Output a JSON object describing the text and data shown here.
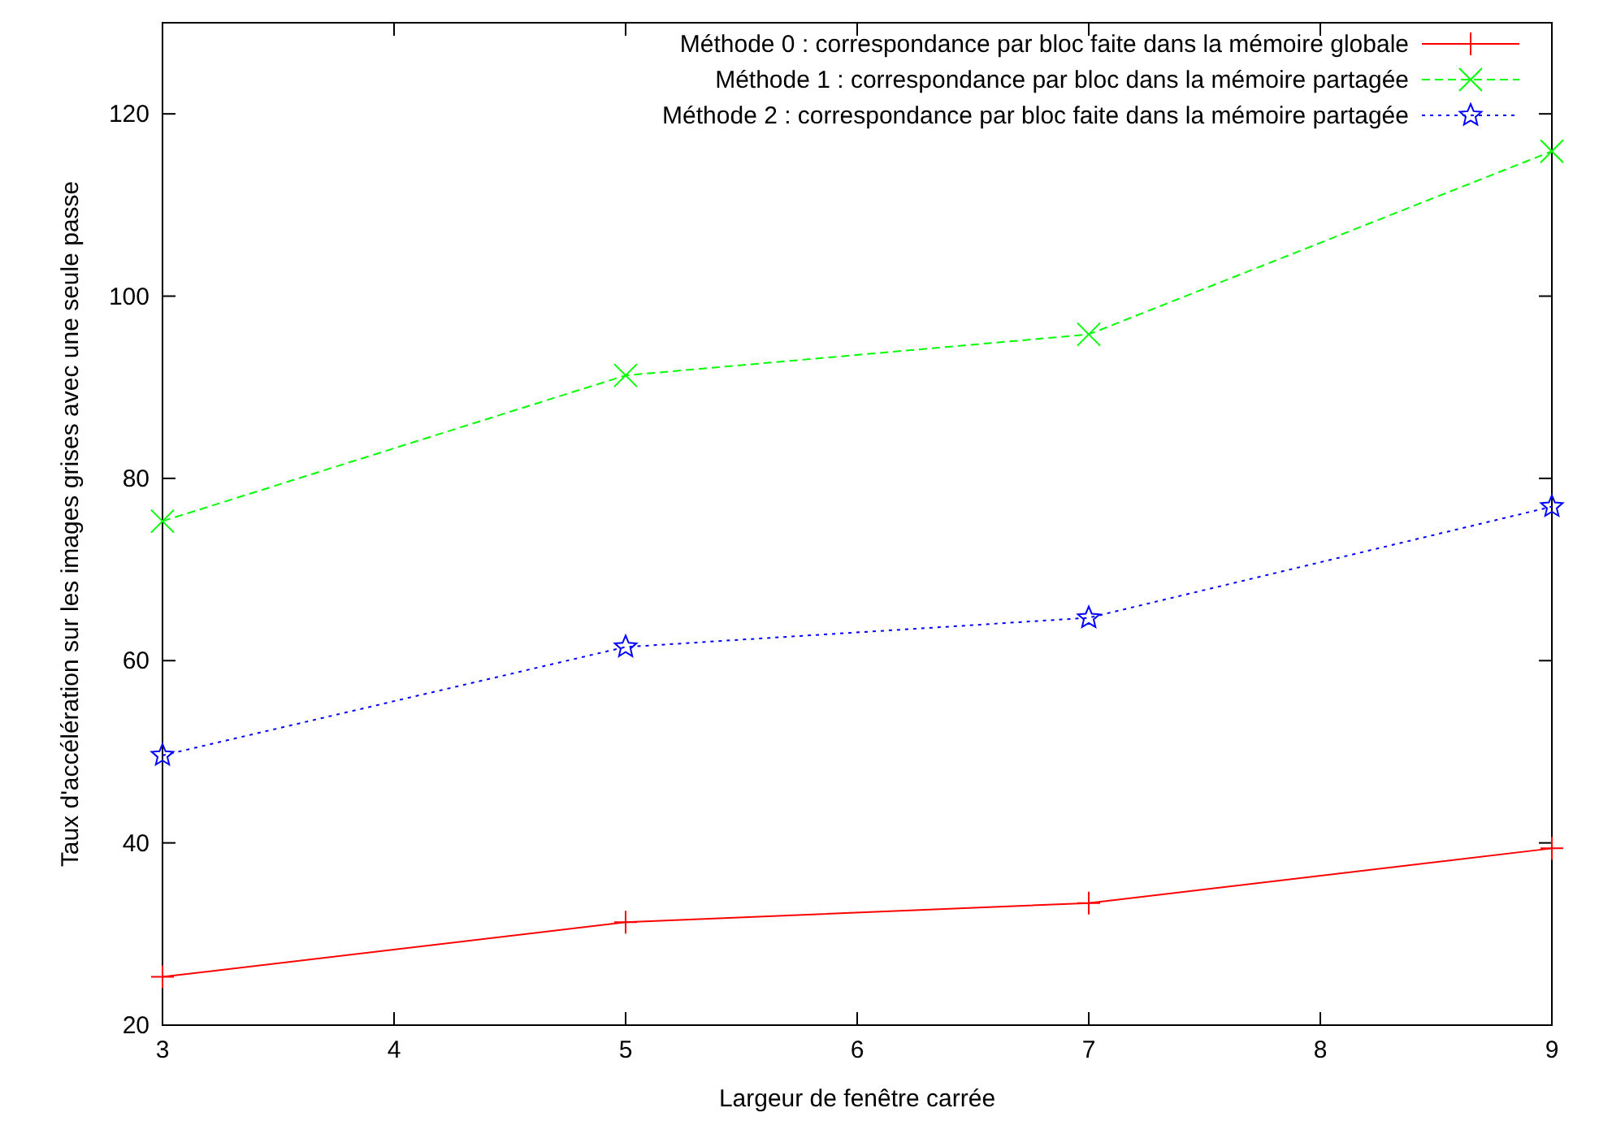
{
  "chart_data": {
    "type": "line",
    "xlabel": "Largeur de fenêtre carrée",
    "ylabel": "Taux d'accélération sur les images grises avec une seule passe",
    "x": [
      3,
      5,
      7,
      9
    ],
    "xlim": [
      3,
      9
    ],
    "xticks": [
      3,
      4,
      5,
      6,
      7,
      8,
      9
    ],
    "ylim": [
      20,
      130
    ],
    "yticks": [
      20,
      40,
      60,
      80,
      100,
      120
    ],
    "legend": "top right",
    "grid": false,
    "series": [
      {
        "name": "Méthode 0 : correspondance par bloc faite dans la mémoire globale",
        "color": "#ff0000",
        "values": [
          25.3,
          31.3,
          33.4,
          39.4
        ],
        "marker": "plus",
        "line_style": "solid"
      },
      {
        "name": "Méthode 1 : correspondance par bloc dans la mémoire partagée",
        "color": "#00ff00",
        "values": [
          75.3,
          91.3,
          95.8,
          115.9
        ],
        "marker": "cross",
        "line_style": "dashed"
      },
      {
        "name": "Méthode 2 : correspondance par bloc faite dans la mémoire partagée",
        "color": "#0000ff",
        "values": [
          49.6,
          61.5,
          64.7,
          76.9
        ],
        "marker": "star",
        "line_style": "dotted"
      }
    ]
  }
}
